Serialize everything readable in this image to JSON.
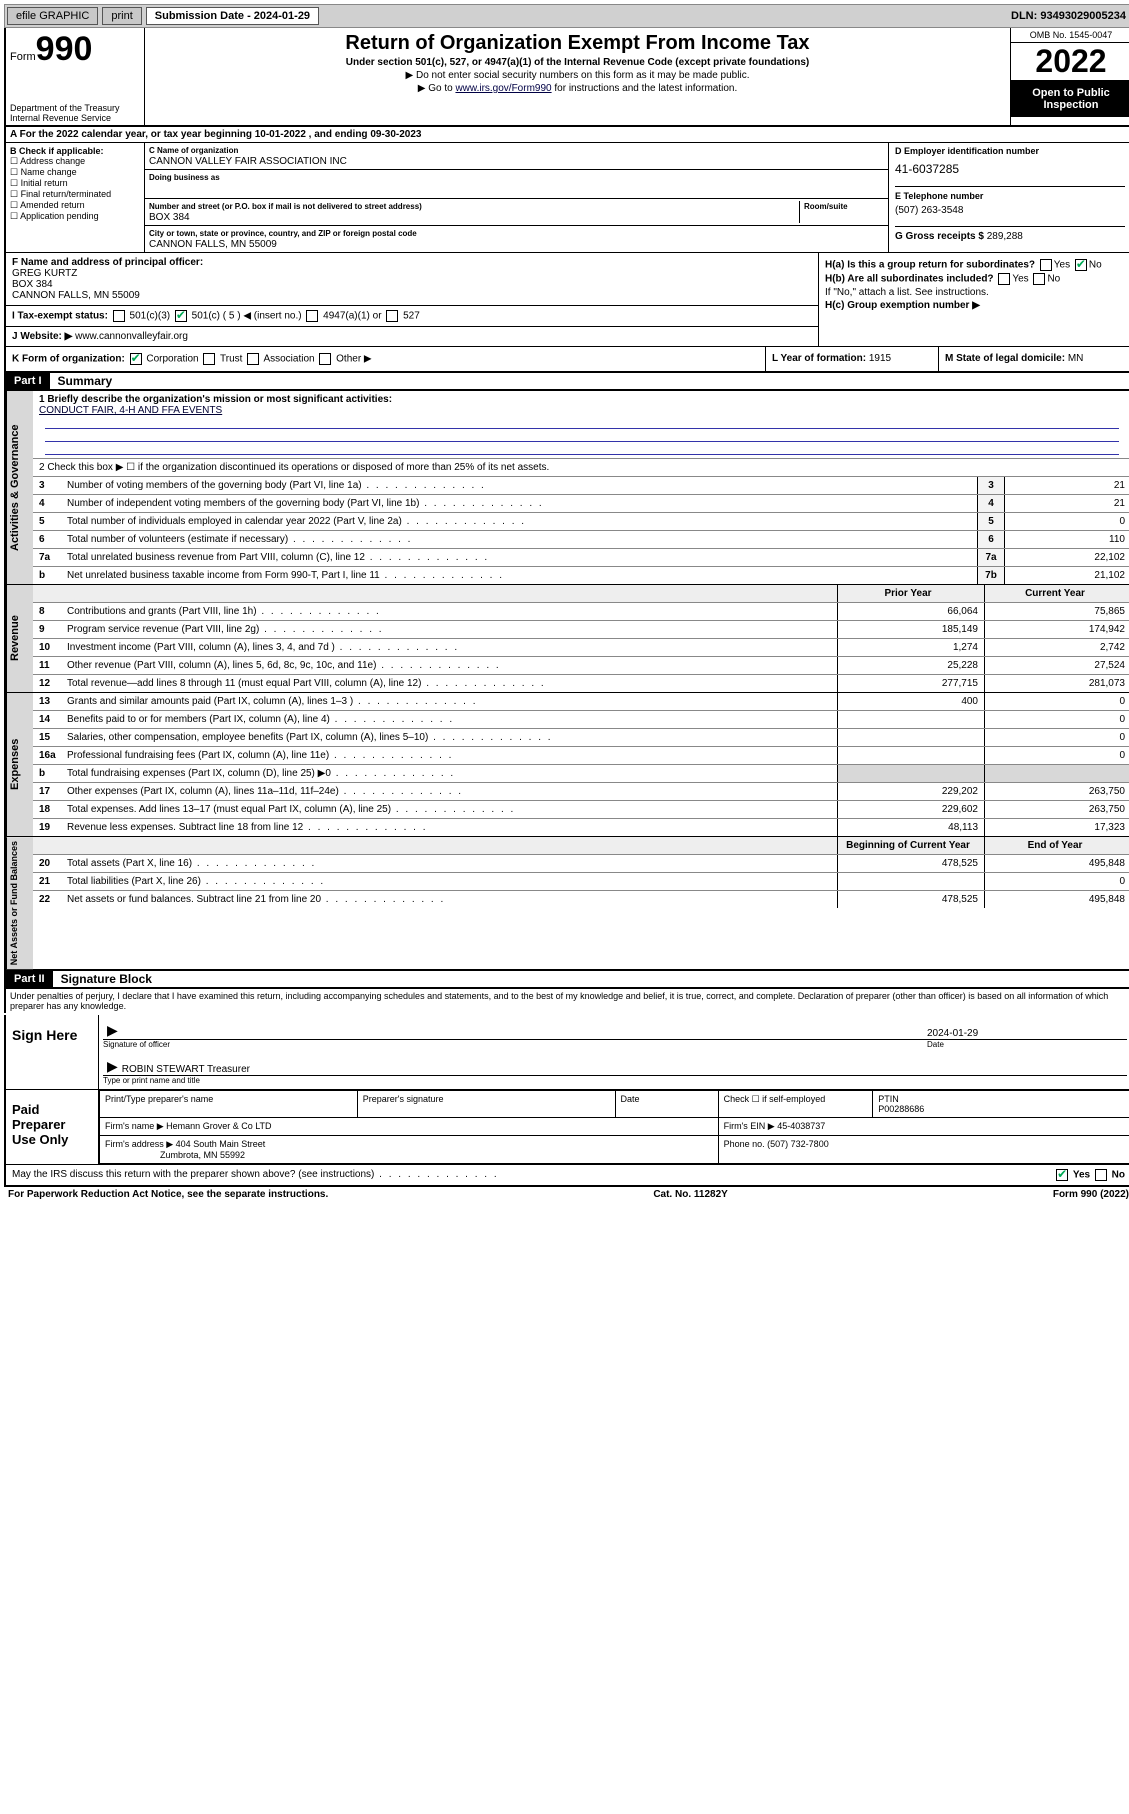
{
  "topbar": {
    "efile": "efile GRAPHIC",
    "print": "print",
    "submission_label": "Submission Date - 2024-01-29",
    "dln": "DLN: 93493029005234"
  },
  "header": {
    "form_label": "Form",
    "form_num": "990",
    "dept": "Department of the Treasury",
    "irs": "Internal Revenue Service",
    "title": "Return of Organization Exempt From Income Tax",
    "sub": "Under section 501(c), 527, or 4947(a)(1) of the Internal Revenue Code (except private foundations)",
    "note1": "▶ Do not enter social security numbers on this form as it may be made public.",
    "note2_pre": "▶ Go to ",
    "note2_link": "www.irs.gov/Form990",
    "note2_post": " for instructions and the latest information.",
    "omb": "OMB No. 1545-0047",
    "year": "2022",
    "open": "Open to Public Inspection"
  },
  "A": {
    "text": "A For the 2022 calendar year, or tax year beginning 10-01-2022   , and ending 09-30-2023"
  },
  "B": {
    "label": "B Check if applicable:",
    "items": [
      "Address change",
      "Name change",
      "Initial return",
      "Final return/terminated",
      "Amended return",
      "Application pending"
    ]
  },
  "C": {
    "name_label": "C Name of organization",
    "name": "CANNON VALLEY FAIR ASSOCIATION INC",
    "dba_label": "Doing business as",
    "street_label": "Number and street (or P.O. box if mail is not delivered to street address)",
    "room_label": "Room/suite",
    "street": "BOX 384",
    "city_label": "City or town, state or province, country, and ZIP or foreign postal code",
    "city": "CANNON FALLS, MN  55009"
  },
  "D": {
    "label": "D Employer identification number",
    "ein": "41-6037285"
  },
  "E": {
    "label": "E Telephone number",
    "phone": "(507) 263-3548"
  },
  "G": {
    "label": "G Gross receipts $",
    "val": "289,288"
  },
  "F": {
    "label": "F Name and address of principal officer:",
    "name": "GREG KURTZ",
    "addr1": "BOX 384",
    "addr2": "CANNON FALLS, MN  55009"
  },
  "H": {
    "a": "H(a) Is this a group return for subordinates?",
    "a_yes": "Yes",
    "a_no": "No",
    "b": "H(b) Are all subordinates included?",
    "b_yes": "Yes",
    "b_no": "No",
    "b_note": "If \"No,\" attach a list. See instructions.",
    "c": "H(c) Group exemption number ▶"
  },
  "I": {
    "label": "I   Tax-exempt status:",
    "o501c3": "501(c)(3)",
    "o501c": "501(c) ( 5 ) ◀ (insert no.)",
    "o4947": "4947(a)(1) or",
    "o527": "527"
  },
  "J": {
    "label": "J   Website: ▶",
    "site": "www.cannonvalleyfair.org"
  },
  "K": {
    "label": "K Form of organization:",
    "corp": "Corporation",
    "trust": "Trust",
    "assoc": "Association",
    "other": "Other ▶"
  },
  "L": {
    "label": "L Year of formation:",
    "val": "1915"
  },
  "M": {
    "label": "M State of legal domicile:",
    "val": "MN"
  },
  "part1": {
    "hdr": "Part I",
    "title": "Summary",
    "line1_label": "1   Briefly describe the organization's mission or most significant activities:",
    "mission": "CONDUCT FAIR, 4-H AND FFA EVENTS",
    "line2": "2   Check this box ▶ ☐  if the organization discontinued its operations or disposed of more than 25% of its net assets.",
    "rows_gov": [
      {
        "n": "3",
        "t": "Number of voting members of the governing body (Part VI, line 1a)",
        "box": "3",
        "v": "21"
      },
      {
        "n": "4",
        "t": "Number of independent voting members of the governing body (Part VI, line 1b)",
        "box": "4",
        "v": "21"
      },
      {
        "n": "5",
        "t": "Total number of individuals employed in calendar year 2022 (Part V, line 2a)",
        "box": "5",
        "v": "0"
      },
      {
        "n": "6",
        "t": "Total number of volunteers (estimate if necessary)",
        "box": "6",
        "v": "110"
      },
      {
        "n": "7a",
        "t": "Total unrelated business revenue from Part VIII, column (C), line 12",
        "box": "7a",
        "v": "22,102"
      },
      {
        "n": "b",
        "t": "Net unrelated business taxable income from Form 990-T, Part I, line 11",
        "box": "7b",
        "v": "21,102"
      }
    ],
    "hdr_prior": "Prior Year",
    "hdr_curr": "Current Year",
    "rows_rev": [
      {
        "n": "8",
        "t": "Contributions and grants (Part VIII, line 1h)",
        "p": "66,064",
        "c": "75,865"
      },
      {
        "n": "9",
        "t": "Program service revenue (Part VIII, line 2g)",
        "p": "185,149",
        "c": "174,942"
      },
      {
        "n": "10",
        "t": "Investment income (Part VIII, column (A), lines 3, 4, and 7d )",
        "p": "1,274",
        "c": "2,742"
      },
      {
        "n": "11",
        "t": "Other revenue (Part VIII, column (A), lines 5, 6d, 8c, 9c, 10c, and 11e)",
        "p": "25,228",
        "c": "27,524"
      },
      {
        "n": "12",
        "t": "Total revenue—add lines 8 through 11 (must equal Part VIII, column (A), line 12)",
        "p": "277,715",
        "c": "281,073"
      }
    ],
    "rows_exp": [
      {
        "n": "13",
        "t": "Grants and similar amounts paid (Part IX, column (A), lines 1–3 )",
        "p": "400",
        "c": "0"
      },
      {
        "n": "14",
        "t": "Benefits paid to or for members (Part IX, column (A), line 4)",
        "p": "",
        "c": "0"
      },
      {
        "n": "15",
        "t": "Salaries, other compensation, employee benefits (Part IX, column (A), lines 5–10)",
        "p": "",
        "c": "0"
      },
      {
        "n": "16a",
        "t": "Professional fundraising fees (Part IX, column (A), line 11e)",
        "p": "",
        "c": "0"
      },
      {
        "n": "b",
        "t": "Total fundraising expenses (Part IX, column (D), line 25) ▶0",
        "p": "shade",
        "c": "shade"
      },
      {
        "n": "17",
        "t": "Other expenses (Part IX, column (A), lines 11a–11d, 11f–24e)",
        "p": "229,202",
        "c": "263,750"
      },
      {
        "n": "18",
        "t": "Total expenses. Add lines 13–17 (must equal Part IX, column (A), line 25)",
        "p": "229,602",
        "c": "263,750"
      },
      {
        "n": "19",
        "t": "Revenue less expenses. Subtract line 18 from line 12",
        "p": "48,113",
        "c": "17,323"
      }
    ],
    "hdr_begin": "Beginning of Current Year",
    "hdr_end": "End of Year",
    "rows_net": [
      {
        "n": "20",
        "t": "Total assets (Part X, line 16)",
        "p": "478,525",
        "c": "495,848"
      },
      {
        "n": "21",
        "t": "Total liabilities (Part X, line 26)",
        "p": "",
        "c": "0"
      },
      {
        "n": "22",
        "t": "Net assets or fund balances. Subtract line 21 from line 20",
        "p": "478,525",
        "c": "495,848"
      }
    ]
  },
  "part2": {
    "hdr": "Part II",
    "title": "Signature Block",
    "penalties": "Under penalties of perjury, I declare that I have examined this return, including accompanying schedules and statements, and to the best of my knowledge and belief, it is true, correct, and complete. Declaration of preparer (other than officer) is based on all information of which preparer has any knowledge.",
    "sign_here": "Sign Here",
    "sig_officer": "Signature of officer",
    "date_lbl": "Date",
    "sig_date": "2024-01-29",
    "name_title": "ROBIN STEWART Treasurer",
    "type_name": "Type or print name and title",
    "paid": "Paid Preparer Use Only",
    "pt_name_lbl": "Print/Type preparer's name",
    "pt_sig_lbl": "Preparer's signature",
    "pt_date_lbl": "Date",
    "pt_check": "Check ☐ if self-employed",
    "ptin_lbl": "PTIN",
    "ptin": "P00288686",
    "firm_name_lbl": "Firm's name   ▶",
    "firm_name": "Hemann Grover & Co LTD",
    "firm_ein_lbl": "Firm's EIN ▶",
    "firm_ein": "45-4038737",
    "firm_addr_lbl": "Firm's address ▶",
    "firm_addr1": "404 South Main Street",
    "firm_addr2": "Zumbrota, MN  55992",
    "phone_lbl": "Phone no.",
    "phone": "(507) 732-7800",
    "may_irs": "May the IRS discuss this return with the preparer shown above? (see instructions)",
    "yes": "Yes",
    "no": "No"
  },
  "footer": {
    "pra": "For Paperwork Reduction Act Notice, see the separate instructions.",
    "cat": "Cat. No. 11282Y",
    "form": "Form 990 (2022)"
  }
}
